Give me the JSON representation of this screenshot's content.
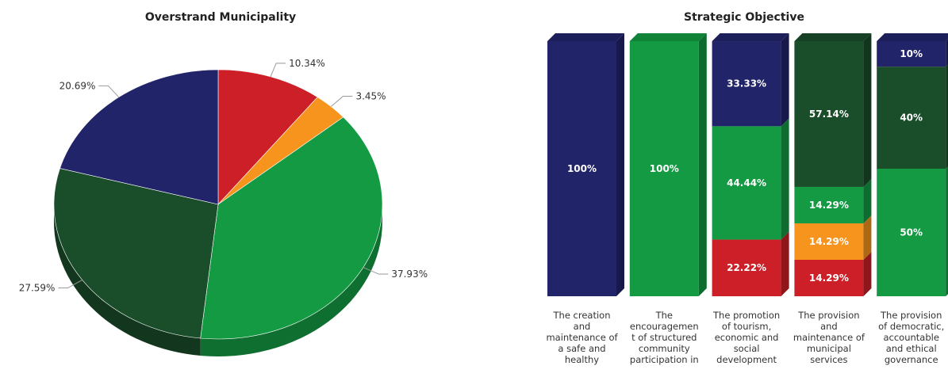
{
  "chart_data": [
    {
      "type": "pie",
      "title": "Overstrand Municipality",
      "slices": [
        {
          "value": 10.34,
          "label": "10.34%",
          "color": "#cc1f27"
        },
        {
          "value": 3.45,
          "label": "3.45%",
          "color": "#f7941d"
        },
        {
          "value": 37.93,
          "label": "37.93%",
          "color": "#139a43"
        },
        {
          "value": 27.59,
          "label": "27.59%",
          "color": "#1a4d2a"
        },
        {
          "value": 20.69,
          "label": "20.69%",
          "color": "#22246a"
        }
      ]
    },
    {
      "type": "bar",
      "stacked": true,
      "percent": true,
      "title": "Strategic Objective",
      "categories": [
        [
          "The creation",
          "and",
          "maintenance of",
          "a safe and",
          "healthy"
        ],
        [
          "The",
          "encouragemen",
          "t of structured",
          "community",
          "participation in"
        ],
        [
          "The promotion",
          "of tourism,",
          "economic and",
          "social",
          "development"
        ],
        [
          "The provision",
          "and",
          "maintenance of",
          "municipal",
          "services"
        ],
        [
          "The provision",
          "of democratic,",
          "accountable",
          "and ethical",
          "governance"
        ]
      ],
      "series": [
        {
          "color": "#cc1f27",
          "values": [
            0,
            0,
            22.22,
            14.29,
            0
          ],
          "labels": [
            "",
            "",
            "22.22%",
            "14.29%",
            ""
          ]
        },
        {
          "color": "#f7941d",
          "values": [
            0,
            0,
            0,
            14.29,
            0
          ],
          "labels": [
            "",
            "",
            "",
            "14.29%",
            ""
          ]
        },
        {
          "color": "#139a43",
          "values": [
            0,
            100,
            44.44,
            14.29,
            50
          ],
          "labels": [
            "",
            "100%",
            "44.44%",
            "14.29%",
            "50%"
          ]
        },
        {
          "color": "#1a4d2a",
          "values": [
            0,
            0,
            0,
            57.14,
            40
          ],
          "labels": [
            "",
            "",
            "",
            "57.14%",
            "40%"
          ]
        },
        {
          "color": "#22246a",
          "values": [
            100,
            0,
            33.33,
            0,
            10
          ],
          "labels": [
            "100%",
            "",
            "33.33%",
            "",
            "10%"
          ]
        }
      ],
      "ylim": [
        0,
        100
      ]
    }
  ]
}
